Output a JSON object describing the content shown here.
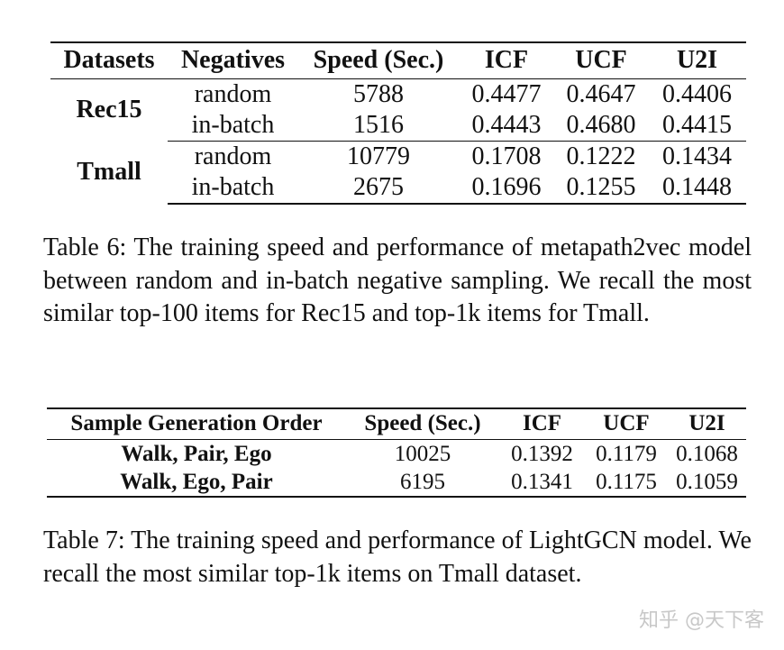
{
  "table6": {
    "headers": [
      "Datasets",
      "Negatives",
      "Speed (Sec.)",
      "ICF",
      "UCF",
      "U2I"
    ],
    "groups": [
      {
        "dataset": "Rec15",
        "rows": [
          {
            "negatives": "random",
            "speed": "5788",
            "icf": "0.4477",
            "ucf": "0.4647",
            "u2i": "0.4406"
          },
          {
            "negatives": "in-batch",
            "speed": "1516",
            "icf": "0.4443",
            "ucf": "0.4680",
            "u2i": "0.4415"
          }
        ]
      },
      {
        "dataset": "Tmall",
        "rows": [
          {
            "negatives": "random",
            "speed": "10779",
            "icf": "0.1708",
            "ucf": "0.1222",
            "u2i": "0.1434"
          },
          {
            "negatives": "in-batch",
            "speed": "2675",
            "icf": "0.1696",
            "ucf": "0.1255",
            "u2i": "0.1448"
          }
        ]
      }
    ],
    "caption": "Table 6: The training speed and performance of metapath2vec model between random and in-batch negative sampling. We recall the most similar top-100 items for Rec15 and top-1k items for Tmall."
  },
  "table7": {
    "headers": [
      "Sample Generation Order",
      "Speed (Sec.)",
      "ICF",
      "UCF",
      "U2I"
    ],
    "rows": [
      {
        "order": "Walk, Pair, Ego",
        "speed": "10025",
        "icf": "0.1392",
        "ucf": "0.1179",
        "u2i": "0.1068"
      },
      {
        "order": "Walk, Ego, Pair",
        "speed": "6195",
        "icf": "0.1341",
        "ucf": "0.1175",
        "u2i": "0.1059"
      }
    ],
    "caption": "Table 7: The training speed and performance of LightGCN model. We recall the most similar top-1k items on Tmall dataset."
  },
  "watermark": "知乎 @天下客"
}
